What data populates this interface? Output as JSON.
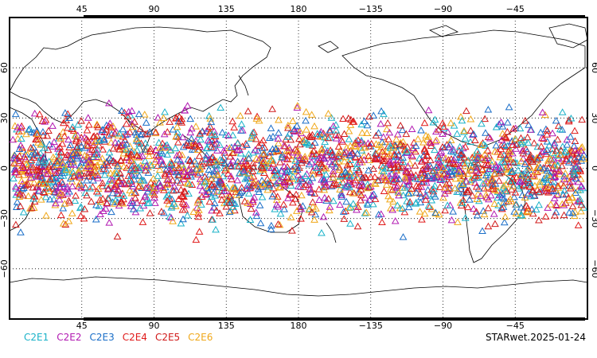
{
  "map": {
    "lon_ticks_top": [
      "45",
      "90",
      "135",
      "180",
      "−135",
      "−90",
      "−45"
    ],
    "lon_ticks_bottom": [
      "45",
      "90",
      "135",
      "180",
      "−135",
      "−90",
      "−45"
    ],
    "lat_ticks_left": [
      "60",
      "30",
      "0",
      "−30",
      "−60"
    ],
    "lat_ticks_right": [
      "60",
      "30",
      "0",
      "−30",
      "−60"
    ],
    "lon_range": [
      0,
      360
    ],
    "lat_range": [
      -90,
      90
    ],
    "grid": "dotted",
    "marker": "triangle-up-open",
    "observation_band_lat": [
      -45,
      45
    ]
  },
  "legend": [
    {
      "label": "C2E1",
      "color": "#1ab2c8"
    },
    {
      "label": "C2E2",
      "color": "#b21ab2"
    },
    {
      "label": "C2E3",
      "color": "#1a6ec8"
    },
    {
      "label": "C2E4",
      "color": "#e01a1a"
    },
    {
      "label": "C2E5",
      "color": "#d01a1a"
    },
    {
      "label": "C2E6",
      "color": "#f0a81a"
    }
  ],
  "stamp": "STARwet.2025-01-24"
}
